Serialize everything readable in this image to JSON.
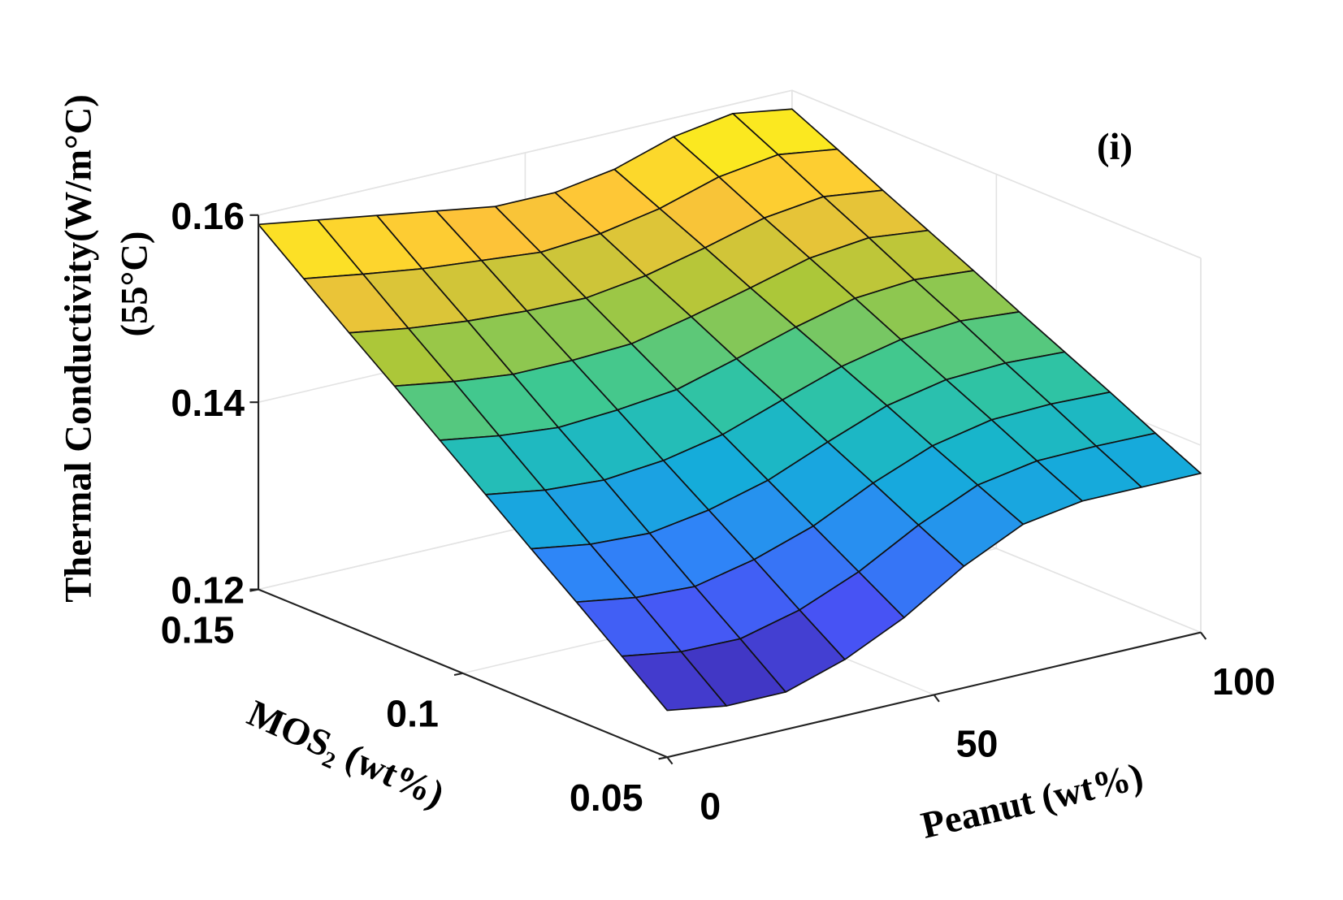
{
  "chart_data": {
    "type": "surface",
    "zlabel_lines": [
      "Thermal Conductivity(W/m°C)",
      "(55°C)"
    ],
    "ylabel": "MOS₂ (wt%)",
    "xlabel": "Peanut (wt%)",
    "annotation": "(i)",
    "colormap": "parula",
    "grid": true,
    "x": [
      0,
      11.1,
      22.2,
      33.3,
      44.4,
      55.6,
      66.7,
      77.8,
      88.9,
      100
    ],
    "y": [
      0.05,
      0.0611,
      0.0722,
      0.0833,
      0.0944,
      0.1056,
      0.1167,
      0.1278,
      0.1389,
      0.15
    ],
    "z": [
      [
        0.125,
        0.124,
        0.124,
        0.126,
        0.129,
        0.133,
        0.136,
        0.137,
        0.137,
        0.137
      ],
      [
        0.1288,
        0.1278,
        0.1277,
        0.1293,
        0.1319,
        0.1354,
        0.1382,
        0.1393,
        0.1394,
        0.1393
      ],
      [
        0.1326,
        0.1316,
        0.1313,
        0.1327,
        0.1348,
        0.1379,
        0.1404,
        0.1417,
        0.1419,
        0.1417
      ],
      [
        0.1363,
        0.1353,
        0.135,
        0.136,
        0.1377,
        0.1403,
        0.1427,
        0.144,
        0.1443,
        0.144
      ],
      [
        0.1401,
        0.1391,
        0.1387,
        0.1393,
        0.1406,
        0.1428,
        0.1449,
        0.1463,
        0.1468,
        0.1463
      ],
      [
        0.1439,
        0.1429,
        0.1423,
        0.1427,
        0.1434,
        0.1452,
        0.1471,
        0.1487,
        0.1492,
        0.1487
      ],
      [
        0.1477,
        0.1467,
        0.146,
        0.146,
        0.1463,
        0.1477,
        0.1493,
        0.151,
        0.1517,
        0.151
      ],
      [
        0.1514,
        0.1504,
        0.1497,
        0.1493,
        0.1492,
        0.1501,
        0.1516,
        0.1533,
        0.1541,
        0.1533
      ],
      [
        0.1552,
        0.1542,
        0.1533,
        0.1527,
        0.1521,
        0.1526,
        0.1538,
        0.1557,
        0.1566,
        0.1557
      ],
      [
        0.159,
        0.158,
        0.157,
        0.156,
        0.155,
        0.155,
        0.156,
        0.158,
        0.159,
        0.158
      ]
    ],
    "xlim": [
      0,
      100
    ],
    "xticks": [
      0,
      50,
      100
    ],
    "ylim": [
      0.05,
      0.15
    ],
    "yticks": [
      0.05,
      0.1,
      0.15
    ],
    "zlim": [
      0.12,
      0.16
    ],
    "zticks": [
      0.12,
      0.14,
      0.16
    ]
  }
}
